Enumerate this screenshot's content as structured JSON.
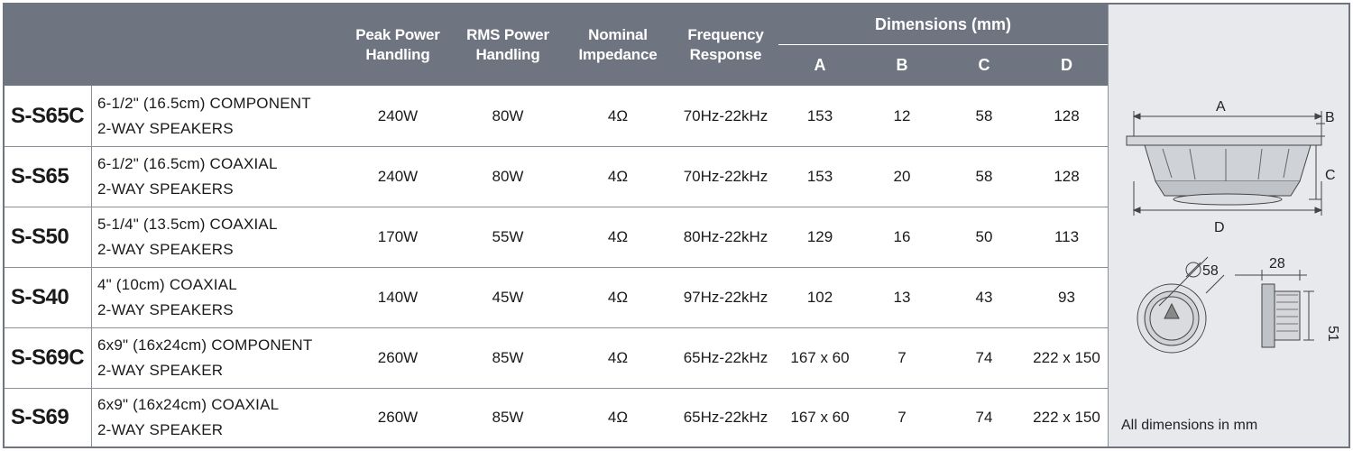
{
  "header": {
    "peak": "Peak Power\nHandling",
    "rms": "RMS Power\nHandling",
    "impedance": "Nominal\nImpedance",
    "frequency": "Frequency\nResponse",
    "dimensions": "Dimensions (mm)",
    "dim_letters": [
      "A",
      "B",
      "C",
      "D"
    ]
  },
  "rows": [
    {
      "model": "S-S65C",
      "desc1": "6-1/2\" (16.5cm) COMPONENT",
      "desc2": "2-WAY SPEAKERS",
      "peak": "240W",
      "rms": "80W",
      "imp": "4Ω",
      "freq": "70Hz-22kHz",
      "a": "153",
      "b": "12",
      "c": "58",
      "d": "128"
    },
    {
      "model": "S-S65",
      "desc1": "6-1/2\" (16.5cm) COAXIAL",
      "desc2": "2-WAY SPEAKERS",
      "peak": "240W",
      "rms": "80W",
      "imp": "4Ω",
      "freq": "70Hz-22kHz",
      "a": "153",
      "b": "20",
      "c": "58",
      "d": "128"
    },
    {
      "model": "S-S50",
      "desc1": "5-1/4\" (13.5cm) COAXIAL",
      "desc2": "2-WAY SPEAKERS",
      "peak": "170W",
      "rms": "55W",
      "imp": "4Ω",
      "freq": "80Hz-22kHz",
      "a": "129",
      "b": "16",
      "c": "50",
      "d": "113"
    },
    {
      "model": "S-S40",
      "desc1": "4\" (10cm) COAXIAL",
      "desc2": "2-WAY SPEAKERS",
      "peak": "140W",
      "rms": "45W",
      "imp": "4Ω",
      "freq": "97Hz-22kHz",
      "a": "102",
      "b": "13",
      "c": "43",
      "d": "93"
    },
    {
      "model": "S-S69C",
      "desc1": "6x9\" (16x24cm) COMPONENT",
      "desc2": "2-WAY SPEAKER",
      "peak": "260W",
      "rms": "85W",
      "imp": "4Ω",
      "freq": "65Hz-22kHz",
      "a": "167 x 60",
      "b": "7",
      "c": "74",
      "d": "222 x 150"
    },
    {
      "model": "S-S69",
      "desc1": "6x9\" (16x24cm) COAXIAL",
      "desc2": "2-WAY SPEAKER",
      "peak": "260W",
      "rms": "85W",
      "imp": "4Ω",
      "freq": "65Hz-22kHz",
      "a": "167 x 60",
      "b": "7",
      "c": "74",
      "d": "222 x 150"
    }
  ],
  "diagram": {
    "labels": {
      "a": "A",
      "b": "B",
      "c": "C",
      "d": "D"
    },
    "tweeter_diameter": "58",
    "tweeter_depth": "28",
    "tweeter_height": "51",
    "note": "All dimensions in mm"
  },
  "colors": {
    "header_bg": "#6e7480",
    "side_bg": "#e7e9ec",
    "rule": "#8a8f99"
  }
}
